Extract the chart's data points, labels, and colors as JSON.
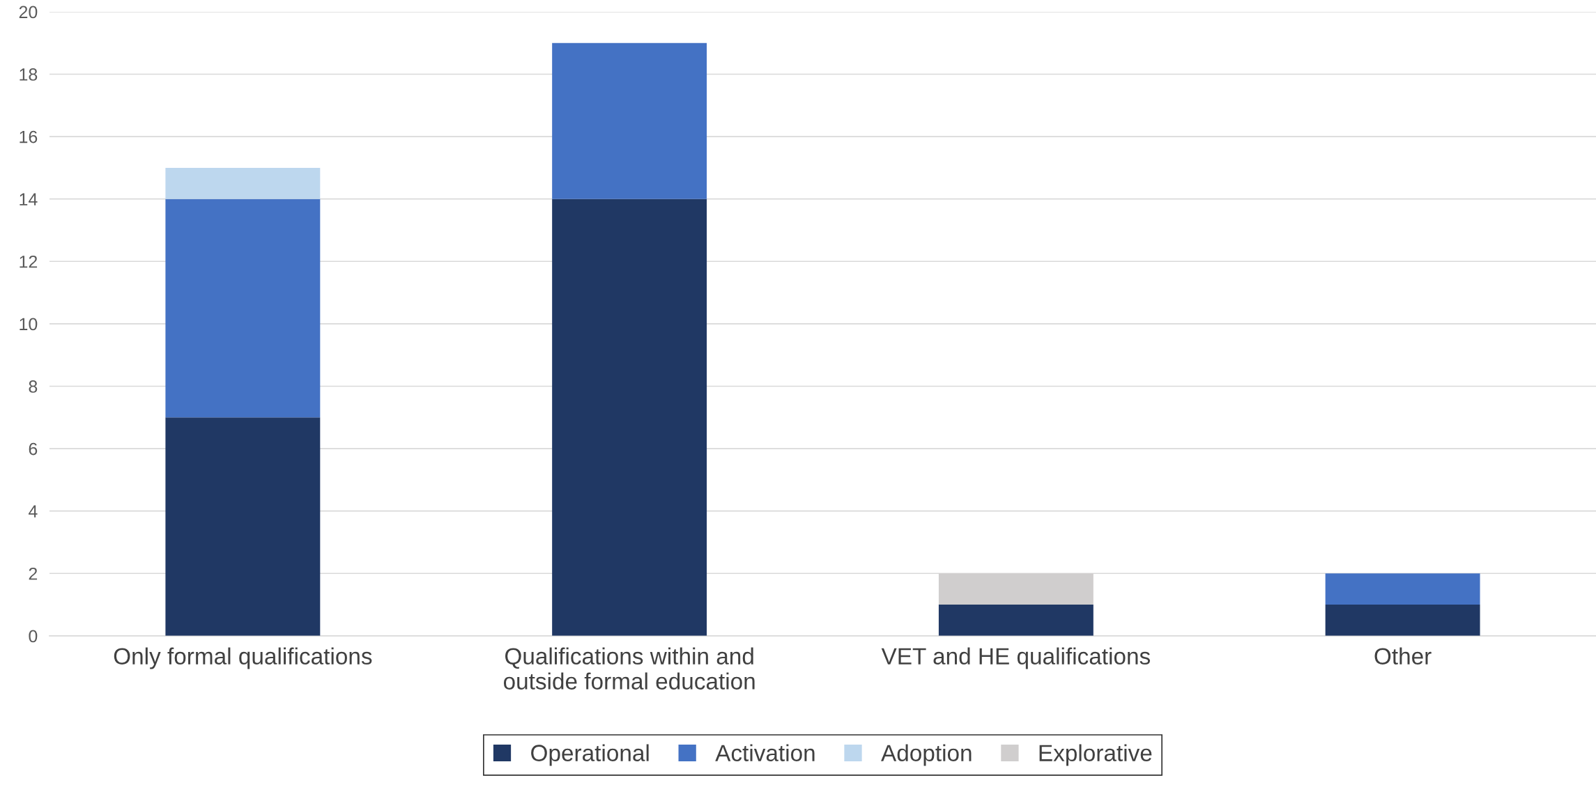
{
  "chart_data": {
    "type": "bar",
    "stacked": true,
    "categories": [
      "Only formal qualifications",
      "Qualifications within and\noutside formal education",
      "VET and HE qualifications",
      "Other"
    ],
    "series": [
      {
        "name": "Operational",
        "color": "#203864",
        "values": [
          7,
          14,
          1,
          1
        ]
      },
      {
        "name": "Activation",
        "color": "#4472c4",
        "values": [
          7,
          5,
          0,
          1
        ]
      },
      {
        "name": "Adoption",
        "color": "#bdd7ee",
        "values": [
          1,
          0,
          0,
          0
        ]
      },
      {
        "name": "Explorative",
        "color": "#d0cece",
        "values": [
          0,
          0,
          1,
          0
        ]
      }
    ],
    "ylim": [
      0,
      20
    ],
    "yticks": [
      0,
      2,
      4,
      6,
      8,
      10,
      12,
      14,
      16,
      18,
      20
    ],
    "grid": "y",
    "legend": "bottom"
  }
}
